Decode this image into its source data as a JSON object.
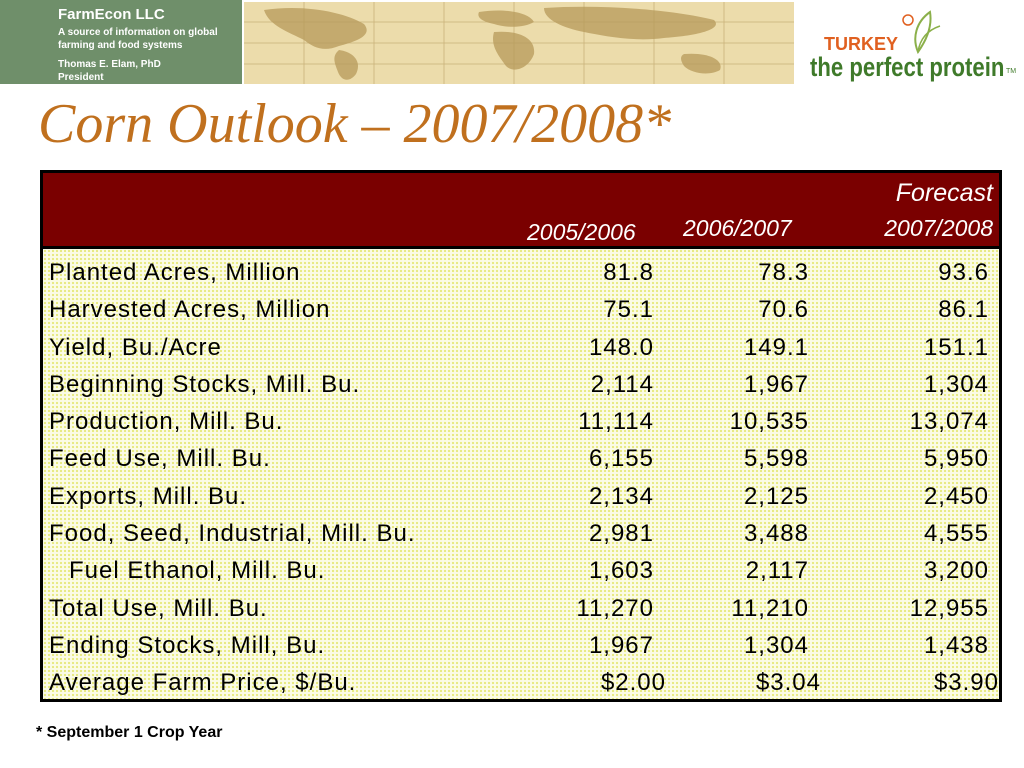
{
  "header": {
    "brand_name": "FarmEcon LLC",
    "brand_tagline": "A source of information on global farming and food systems",
    "brand_author": "Thomas E. Elam, PhD\nPresident",
    "logo_word1": "TURKEY",
    "logo_word2": "the perfect protein",
    "logo_tm": "TM",
    "colors": {
      "brand_bg": "#6f8f6a",
      "logo_orange": "#e06020",
      "logo_green": "#3f7a2a"
    }
  },
  "title": "Corn Outlook – 2007/2008*",
  "table": {
    "forecast_label": "Forecast",
    "columns": [
      "2005/2006",
      "2006/2007",
      "2007/2008"
    ],
    "header_color": "#7a0000",
    "rows": [
      {
        "label": "Planted Acres, Million",
        "v1": "81.8",
        "v2": "78.3",
        "v3": "93.6"
      },
      {
        "label": "Harvested Acres, Million",
        "v1": "75.1",
        "v2": "70.6",
        "v3": "86.1"
      },
      {
        "label": "Yield, Bu./Acre",
        "v1": "148.0",
        "v2": "149.1",
        "v3": "151.1"
      },
      {
        "label": "Beginning Stocks, Mill. Bu.",
        "v1": "2,114",
        "v2": "1,967",
        "v3": "1,304"
      },
      {
        "label": "Production, Mill. Bu.",
        "v1": "11,114",
        "v2": "10,535",
        "v3": "13,074"
      },
      {
        "label": "Feed Use, Mill. Bu.",
        "v1": "6,155",
        "v2": "5,598",
        "v3": "5,950"
      },
      {
        "label": "Exports, Mill. Bu.",
        "v1": "2,134",
        "v2": "2,125",
        "v3": "2,450"
      },
      {
        "label": "Food, Seed, Industrial, Mill. Bu.",
        "v1": "2,981",
        "v2": "3,488",
        "v3": "4,555"
      },
      {
        "label": "Fuel Ethanol, Mill. Bu.",
        "v1": "1,603",
        "v2": "2,117",
        "v3": "3,200"
      },
      {
        "label": "Total Use, Mill. Bu.",
        "v1": "11,270",
        "v2": "11,210",
        "v3": "12,955"
      },
      {
        "label": "Ending Stocks, Mill, Bu.",
        "v1": "1,967",
        "v2": "1,304",
        "v3": "1,438"
      },
      {
        "label": "Average Farm Price, $/Bu.",
        "v1": "$2.00",
        "v2": "$3.04",
        "v3": "$3.90"
      }
    ]
  },
  "footnote": "* September 1 Crop Year"
}
